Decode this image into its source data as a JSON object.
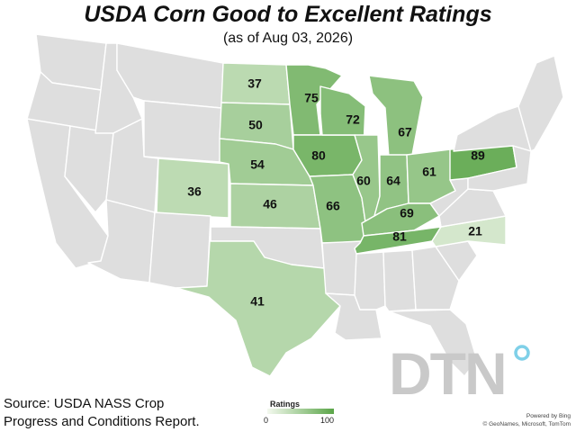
{
  "title": "USDA Corn Good to Excellent Ratings",
  "subtitle": "(as of Aug 03, 2026)",
  "source_line1": "Source: USDA NASS Crop",
  "source_line2": "Progress and Conditions Report.",
  "legend": {
    "title": "Ratings",
    "min": "0",
    "max": "100",
    "low_color": "#f4f9ef",
    "high_color": "#5aa548"
  },
  "no_data_color": "#dedede",
  "logo_text": "DTN",
  "credit_line1": "Powered by Bing",
  "credit_line2": "© GeoNames, Microsoft, TomTom",
  "ratings": {
    "ND": 37,
    "SD": 50,
    "NE": 54,
    "KS": 46,
    "CO": 36,
    "TX": 41,
    "MN": 75,
    "IA": 80,
    "MO": 66,
    "WI": 72,
    "IL": 60,
    "MI": 67,
    "IN": 64,
    "OH": 61,
    "KY": 69,
    "TN": 81,
    "PA": 89,
    "NC": 21
  }
}
